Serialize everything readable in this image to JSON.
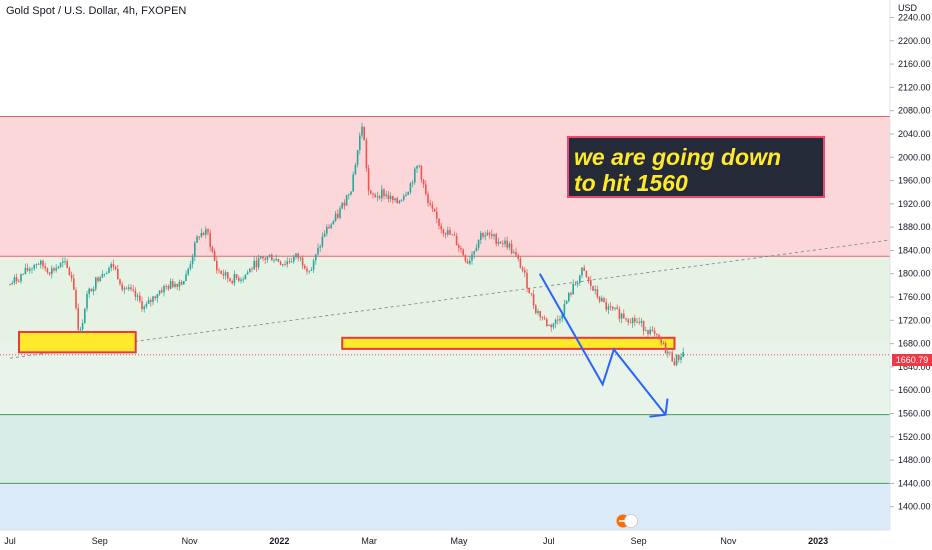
{
  "chart_data": {
    "type": "candlestick",
    "title": "Gold Spot / U.S. Dollar, 4h, FXOPEN",
    "currency_label": "USD",
    "annotation": [
      "we are going down",
      "to hit 1560"
    ],
    "last_price_label": "1660.79",
    "last_price": 1660.79,
    "ylim": [
      1360,
      2270
    ],
    "y_ticks": [
      1400,
      1440,
      1480,
      1520,
      1560,
      1600,
      1640,
      1680,
      1720,
      1760,
      1800,
      1840,
      1880,
      1920,
      1960,
      2000,
      2040,
      2080,
      2120,
      2160,
      2200,
      2240
    ],
    "y_tick_labels": [
      "1400.00",
      "1440.00",
      "1480.00",
      "1520.00",
      "1560.00",
      "1600.00",
      "1640.00",
      "1680.00",
      "1720.00",
      "1760.00",
      "1800.00",
      "1840.00",
      "1880.00",
      "1920.00",
      "1960.00",
      "2000.00",
      "2040.00",
      "2080.00",
      "2120.00",
      "2160.00",
      "2200.00",
      "2240.00"
    ],
    "x_labels": [
      "Jul",
      "Sep",
      "Nov",
      "2022",
      "Mar",
      "May",
      "Jul",
      "Sep",
      "Nov",
      "2023"
    ],
    "x_label_positions": [
      0,
      2,
      4,
      6,
      8,
      10,
      12,
      14,
      16,
      18
    ],
    "x_month_range": [
      0,
      19.6
    ],
    "zones": [
      {
        "from": 1830,
        "to": 2070,
        "color": "#fbd7da"
      },
      {
        "from": 1680,
        "to": 1830,
        "color": "#e6f3e4"
      },
      {
        "from": 1558,
        "to": 1680,
        "color": "#e8f4ea"
      },
      {
        "from": 1440,
        "to": 1558,
        "color": "#d9ede8"
      },
      {
        "from": 1360,
        "to": 1440,
        "color": "#dbeaf8"
      }
    ],
    "zone_lines": [
      {
        "price": 2070,
        "color": "#e3646e"
      },
      {
        "price": 1830,
        "color": "#e3646e"
      },
      {
        "price": 1558,
        "color": "#3e9e5a"
      },
      {
        "price": 1440,
        "color": "#3e9e5a"
      }
    ],
    "boxes": [
      {
        "x0": 0.2,
        "x1": 2.8,
        "y0": 1665,
        "y1": 1700,
        "fill": "#ffe92b",
        "stroke": "#e83a3a"
      },
      {
        "x0": 7.4,
        "x1": 14.8,
        "y0": 1671,
        "y1": 1690,
        "fill": "#ffe92b",
        "stroke": "#e83a3a"
      }
    ],
    "trendline": {
      "x0": 0,
      "y0": 1655,
      "x1": 19.6,
      "y1": 1858
    },
    "arrow_path": [
      [
        11.8,
        1800
      ],
      [
        13.2,
        1610
      ],
      [
        13.45,
        1670
      ],
      [
        14.6,
        1558
      ]
    ],
    "path": [
      [
        0,
        1782
      ],
      [
        0.3,
        1800
      ],
      [
        0.6,
        1820
      ],
      [
        0.9,
        1805
      ],
      [
        1.2,
        1818
      ],
      [
        1.4,
        1790
      ],
      [
        1.55,
        1690
      ],
      [
        1.7,
        1760
      ],
      [
        2.0,
        1800
      ],
      [
        2.3,
        1815
      ],
      [
        2.5,
        1780
      ],
      [
        2.8,
        1760
      ],
      [
        3.0,
        1740
      ],
      [
        3.3,
        1770
      ],
      [
        3.6,
        1782
      ],
      [
        3.9,
        1790
      ],
      [
        4.2,
        1868
      ],
      [
        4.4,
        1870
      ],
      [
        4.6,
        1808
      ],
      [
        4.9,
        1790
      ],
      [
        5.2,
        1795
      ],
      [
        5.5,
        1820
      ],
      [
        5.8,
        1830
      ],
      [
        6.1,
        1818
      ],
      [
        6.4,
        1830
      ],
      [
        6.7,
        1805
      ],
      [
        7.0,
        1870
      ],
      [
        7.3,
        1900
      ],
      [
        7.6,
        1950
      ],
      [
        7.85,
        2060
      ],
      [
        8.0,
        1930
      ],
      [
        8.3,
        1940
      ],
      [
        8.6,
        1920
      ],
      [
        8.9,
        1950
      ],
      [
        9.1,
        1990
      ],
      [
        9.3,
        1920
      ],
      [
        9.6,
        1880
      ],
      [
        9.9,
        1860
      ],
      [
        10.2,
        1820
      ],
      [
        10.5,
        1870
      ],
      [
        10.8,
        1860
      ],
      [
        11.1,
        1850
      ],
      [
        11.4,
        1810
      ],
      [
        11.7,
        1740
      ],
      [
        12.0,
        1710
      ],
      [
        12.2,
        1720
      ],
      [
        12.5,
        1770
      ],
      [
        12.75,
        1805
      ],
      [
        13.0,
        1770
      ],
      [
        13.3,
        1740
      ],
      [
        13.6,
        1730
      ],
      [
        13.9,
        1720
      ],
      [
        14.2,
        1705
      ],
      [
        14.5,
        1680
      ],
      [
        14.8,
        1650
      ],
      [
        15.0,
        1665
      ]
    ]
  }
}
